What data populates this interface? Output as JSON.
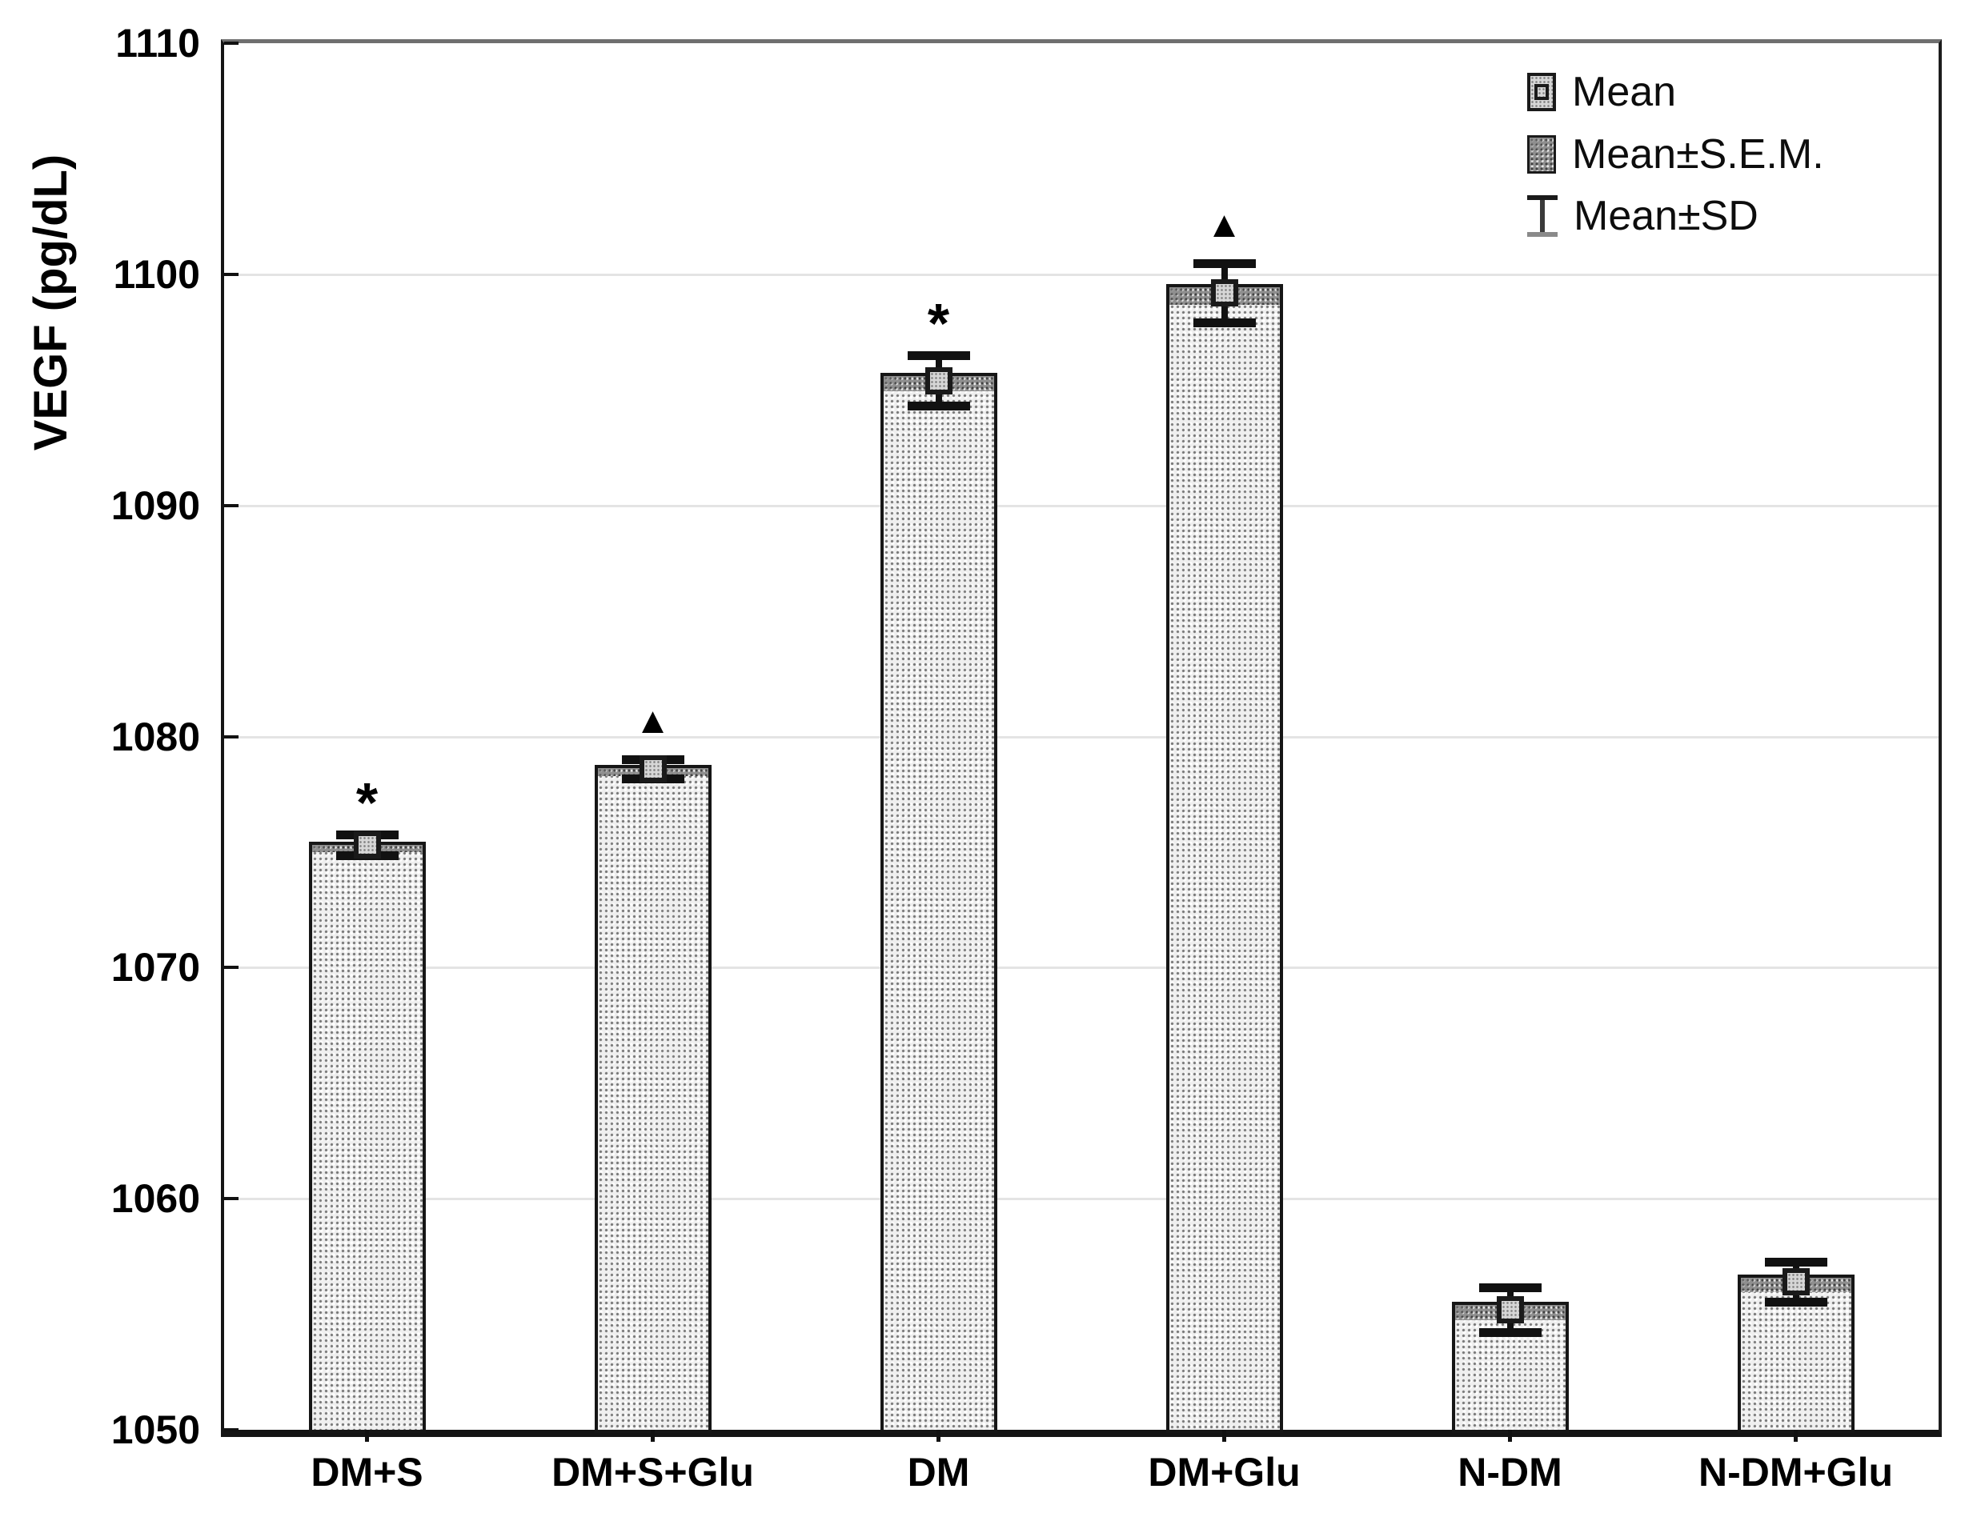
{
  "chart_data": {
    "type": "bar",
    "title": "",
    "ylabel": "VEGF (pg/dL)",
    "xlabel": "",
    "ylim": [
      1050,
      1110
    ],
    "yticks": [
      1050,
      1060,
      1070,
      1080,
      1090,
      1100,
      1110
    ],
    "grid": "horizontal-light-gray",
    "legend_position": "top-right-inside",
    "categories": [
      "DM+S",
      "DM+S+Glu",
      "DM",
      "DM+Glu",
      "N-DM",
      "N-DM+Glu"
    ],
    "series": [
      {
        "name": "Mean",
        "values": [
          1075.3,
          1078.6,
          1095.4,
          1099.2,
          1055.2,
          1056.4
        ]
      },
      {
        "name": "S.E.M.",
        "values": [
          0.15,
          0.16,
          0.33,
          0.38,
          0.33,
          0.3
        ]
      },
      {
        "name": "SD",
        "values": [
          0.45,
          0.42,
          1.1,
          1.28,
          0.97,
          0.87
        ]
      }
    ],
    "annotations": [
      "*",
      "▲",
      "*",
      "▲",
      "",
      ""
    ],
    "bar_style": "light-halftone-dot-pattern",
    "sem_style": "dark-halftone-band-at-bar-top",
    "colors": {
      "background": "#ffffff",
      "bar_fill_base": "#efefef",
      "sem_band": "#8f8f8f",
      "outline": "#161616",
      "gridline": "#e4e4e4",
      "text": "#000000"
    }
  },
  "legend": {
    "items": [
      {
        "label": "Mean",
        "marker": "small-patterned-square-with-inner-box"
      },
      {
        "label": "Mean±S.E.M.",
        "marker": "dark-patterned-box"
      },
      {
        "label": "Mean±SD",
        "marker": "error-bar-i-beam"
      }
    ]
  }
}
